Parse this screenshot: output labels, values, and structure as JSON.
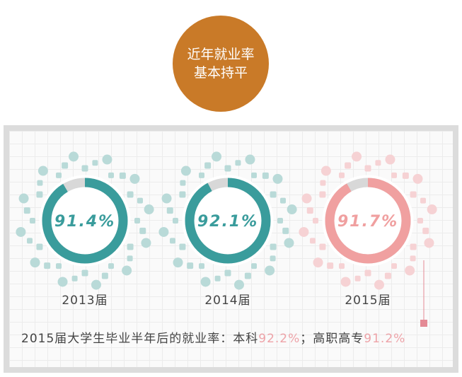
{
  "badge": {
    "line1": "近年就业率",
    "line2": "基本持平",
    "color": "#c97a28"
  },
  "chart_data": {
    "type": "pie",
    "categories": [
      "2013届",
      "2014届",
      "2015届"
    ],
    "values": [
      91.4,
      92.1,
      91.7
    ],
    "labels": [
      "91.4%",
      "92.1%",
      "91.7%"
    ],
    "colors": [
      "#3a9c9c",
      "#3a9c9c",
      "#f0a0a0"
    ],
    "remainder_color": "#d8d8d8"
  },
  "note": {
    "prefix": "2015届大学生毕业半年后的就业率：本科",
    "v1": "92.2%",
    "mid": "；高职高专",
    "v2": "91.2%"
  }
}
